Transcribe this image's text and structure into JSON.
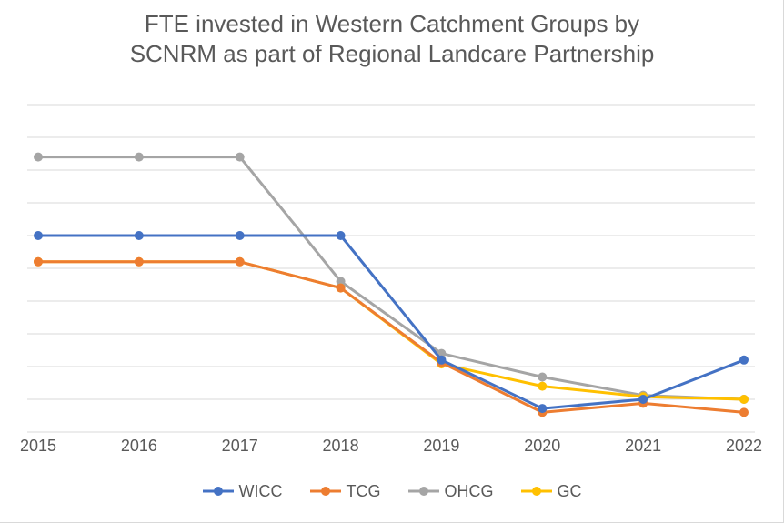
{
  "chart": {
    "type": "line",
    "title_lines": [
      "FTE invested in Western Catchment Groups by",
      "SCNRM as part of Regional Landcare Partnership"
    ],
    "title_fontsize": 26,
    "title_color": "#595959",
    "background_color": "#ffffff",
    "grid_color": "#d9d9d9",
    "grid_line_width": 1,
    "axis_font_color": "#595959",
    "axis_fontsize": 18,
    "legend_fontsize": 18,
    "x_categories": [
      "2015",
      "2016",
      "2017",
      "2018",
      "2019",
      "2020",
      "2021",
      "2022"
    ],
    "ylim": [
      0,
      2.5
    ],
    "ytick_step": 0.25,
    "series_line_width": 3,
    "marker_radius": 5,
    "series": [
      {
        "id": "wicc",
        "name": "WICC",
        "color": "#4472c4",
        "values": [
          1.5,
          1.5,
          1.5,
          1.5,
          0.55,
          0.18,
          0.25,
          0.55
        ]
      },
      {
        "id": "tcg",
        "name": "TCG",
        "color": "#ed7d31",
        "values": [
          1.3,
          1.3,
          1.3,
          1.1,
          0.53,
          0.15,
          0.22,
          0.15
        ]
      },
      {
        "id": "ohcg",
        "name": "OHCG",
        "color": "#a5a5a5",
        "values": [
          2.1,
          2.1,
          2.1,
          1.15,
          0.6,
          0.42,
          0.28,
          0.25
        ]
      },
      {
        "id": "gc",
        "name": "GC",
        "color": "#ffc000",
        "values": [
          1.3,
          1.3,
          1.3,
          1.1,
          0.52,
          0.35,
          0.27,
          0.25
        ]
      }
    ]
  }
}
